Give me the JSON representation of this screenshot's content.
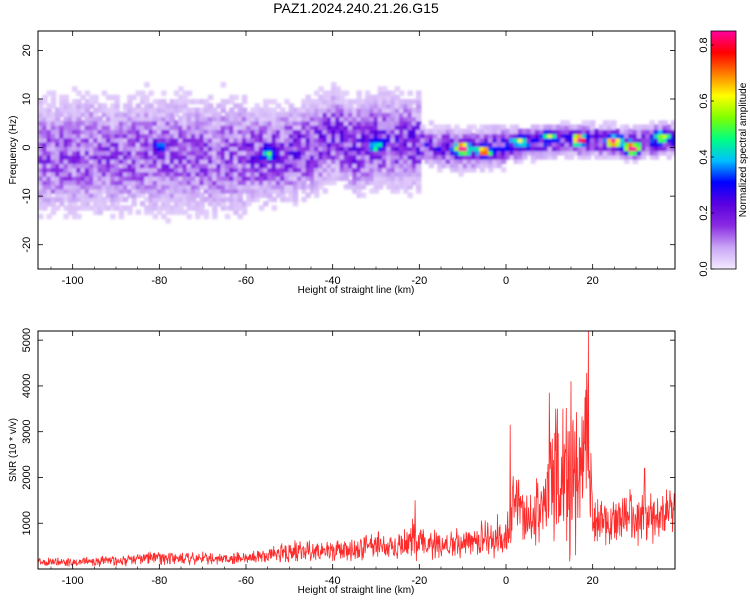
{
  "title": "PAZ1.2024.240.21.26.G15",
  "chart_data": [
    {
      "type": "heatmap",
      "xlabel": "Height of straight line (km)",
      "ylabel": "Frequency (Hz)",
      "xlim": [
        -108,
        39
      ],
      "ylim": [
        -25,
        24
      ],
      "x_ticks": [
        "-100",
        "-80",
        "-60",
        "-40",
        "-20",
        "0",
        "20"
      ],
      "x_tick_values": [
        -100,
        -80,
        -60,
        -40,
        -20,
        0,
        20
      ],
      "y_ticks": [
        "20",
        "10",
        "0",
        "-10",
        "-20"
      ],
      "y_tick_values": [
        20,
        10,
        0,
        -10,
        -20
      ],
      "grid": false,
      "colorbar": {
        "label": "Normalized spectral amplitude",
        "range": [
          0,
          0.85
        ],
        "ticks": [
          "0.0",
          "0.2",
          "0.4",
          "0.6",
          "0.8"
        ],
        "tick_values": [
          0,
          0.2,
          0.4,
          0.6,
          0.8
        ],
        "colors": [
          "#f4eaff",
          "#c9a6f5",
          "#8a2be2",
          "#5a00e0",
          "#0000ff",
          "#00c0ff",
          "#00ff80",
          "#80ff00",
          "#ffff00",
          "#ff8000",
          "#ff0000",
          "#ff00a0"
        ]
      },
      "ridge": {
        "x": [
          -108,
          -90,
          -80,
          -70,
          -60,
          -50,
          -45,
          -40,
          -35,
          -30,
          -20,
          -10,
          0,
          10,
          20,
          30,
          39
        ],
        "y": [
          -1.5,
          -1.5,
          -1.0,
          -1.5,
          -1.5,
          -1.0,
          0.0,
          3.0,
          0.0,
          1.5,
          1.0,
          -0.5,
          0.5,
          1.5,
          1.8,
          1.0,
          2.0
        ]
      },
      "hotspots": [
        {
          "x": -10,
          "y": 0.0,
          "value": 0.8
        },
        {
          "x": -5,
          "y": -0.5,
          "value": 0.6
        },
        {
          "x": 17,
          "y": 1.8,
          "value": 0.75
        },
        {
          "x": 25,
          "y": 1.5,
          "value": 0.7
        },
        {
          "x": 29,
          "y": 0.0,
          "value": 0.85
        },
        {
          "x": 3,
          "y": 1.5,
          "value": 0.45
        },
        {
          "x": 10,
          "y": 2.5,
          "value": 0.4
        },
        {
          "x": -30,
          "y": 0.5,
          "value": 0.35
        },
        {
          "x": -55,
          "y": -1.0,
          "value": 0.3
        },
        {
          "x": -80,
          "y": 0.5,
          "value": 0.3
        },
        {
          "x": 36,
          "y": 2.5,
          "value": 0.45
        }
      ]
    },
    {
      "type": "line",
      "xlabel": "Height of straight line (km)",
      "ylabel": "SNR (10 * v/v)",
      "xlim": [
        -108,
        39
      ],
      "ylim": [
        0,
        5200
      ],
      "x_ticks": [
        "-100",
        "-80",
        "-60",
        "-40",
        "-20",
        "0",
        "20"
      ],
      "x_tick_values": [
        -100,
        -80,
        -60,
        -40,
        -20,
        0,
        20
      ],
      "y_ticks": [
        "5000",
        "4000",
        "3000",
        "2000",
        "1000"
      ],
      "y_tick_values": [
        5000,
        4000,
        3000,
        2000,
        1000
      ],
      "grid": false,
      "line_color": "#ff2a2a",
      "series": [
        {
          "x": [
            -108,
            -100,
            -90,
            -80,
            -70,
            -60,
            -55,
            -50,
            -45,
            -40,
            -35,
            -30,
            -25,
            -22,
            -20,
            -15,
            -10,
            -5,
            0,
            1,
            2,
            5,
            8,
            10,
            12,
            15,
            17,
            18,
            19,
            20,
            22,
            25,
            30,
            35,
            39
          ],
          "mean": [
            150,
            150,
            180,
            250,
            230,
            220,
            300,
            380,
            400,
            380,
            420,
            500,
            450,
            650,
            600,
            500,
            600,
            650,
            700,
            1100,
            1700,
            1050,
            1300,
            1800,
            2000,
            2000,
            2000,
            2800,
            3000,
            1200,
            1000,
            1100,
            1200,
            1100,
            1300
          ],
          "amp": [
            100,
            110,
            130,
            180,
            160,
            160,
            200,
            250,
            270,
            280,
            300,
            350,
            350,
            500,
            450,
            350,
            400,
            450,
            500,
            700,
            1000,
            700,
            900,
            1500,
            2000,
            2100,
            2000,
            2000,
            2200,
            900,
            600,
            600,
            700,
            600,
            650
          ]
        }
      ],
      "peaks": [
        {
          "x": 1,
          "y": 3150
        },
        {
          "x": 10,
          "y": 3850
        },
        {
          "x": 15,
          "y": 4100
        },
        {
          "x": 19,
          "y": 5200
        },
        {
          "x": -21,
          "y": 1500
        },
        {
          "x": -2,
          "y": 1200
        },
        {
          "x": 32,
          "y": 2200
        }
      ]
    }
  ]
}
